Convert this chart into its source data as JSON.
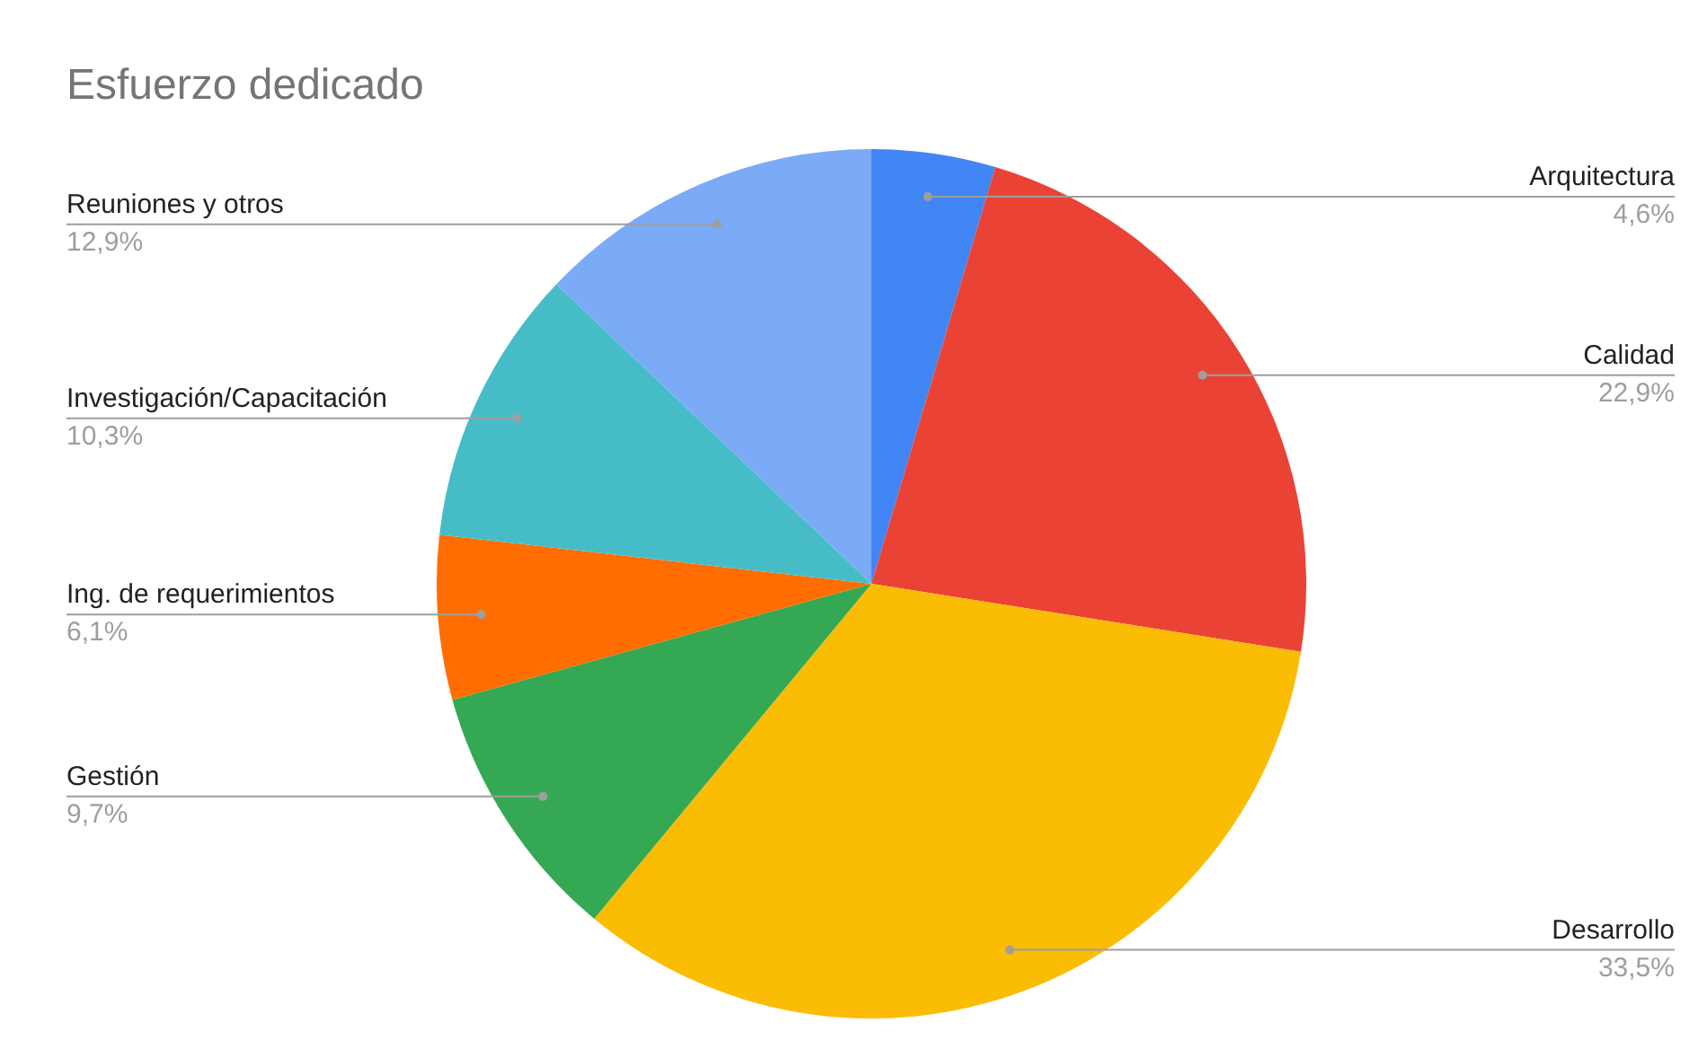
{
  "chart_data": {
    "type": "pie",
    "title": "Esfuerzo dedicado",
    "categories": [
      "Arquitectura",
      "Calidad",
      "Desarrollo",
      "Gestión",
      "Ing. de requerimientos",
      "Investigación/Capacitación",
      "Reuniones y otros"
    ],
    "values": [
      4.6,
      22.9,
      33.5,
      9.7,
      6.1,
      10.3,
      12.9
    ],
    "value_labels": [
      "4,6%",
      "22,9%",
      "33,5%",
      "9,7%",
      "6,1%",
      "10,3%",
      "12,9%"
    ],
    "colors": [
      "#4285f4",
      "#ea4335",
      "#fbbc04",
      "#34a853",
      "#ff6d01",
      "#46bdc6",
      "#7baaf7"
    ]
  }
}
